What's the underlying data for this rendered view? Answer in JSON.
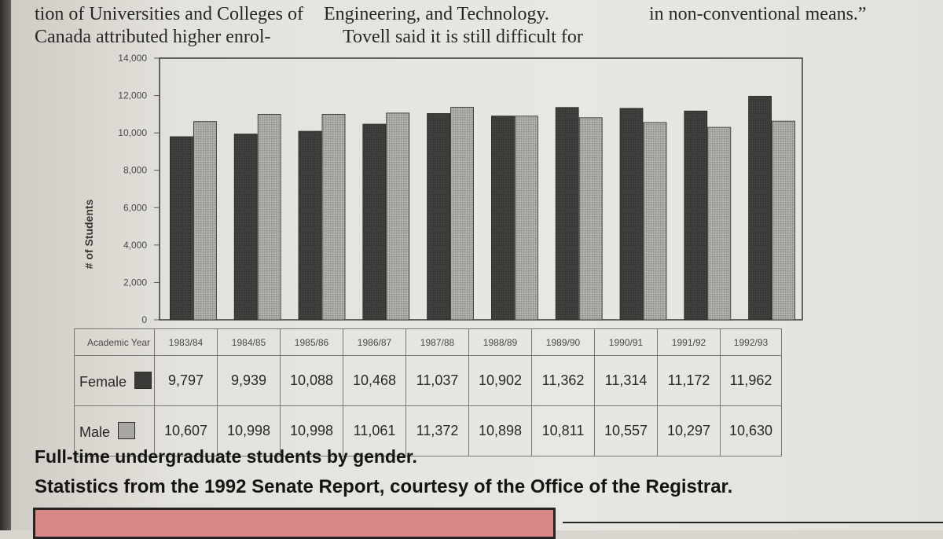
{
  "article": {
    "col1": [
      "tion of Universities and Colleges of",
      "Canada attributed higher enrol-"
    ],
    "col2": [
      "Engineering, and Technology.",
      "Tovell said it is still difficult for"
    ],
    "col3": [
      "in non-conventional means.”"
    ]
  },
  "chart_data": {
    "type": "bar",
    "title": "",
    "xlabel": "Academic Year",
    "ylabel": "# of Students",
    "ylim": [
      0,
      14000
    ],
    "yticks": [
      "0",
      "2,000",
      "4,000",
      "6,000",
      "8,000",
      "10,000",
      "12,000",
      "14,000"
    ],
    "categories": [
      "1983/84",
      "1984/85",
      "1985/86",
      "1986/87",
      "1987/88",
      "1988/89",
      "1989/90",
      "1990/91",
      "1991/92",
      "1992/93"
    ],
    "series": [
      {
        "name": "Female",
        "color": "#3b3a38",
        "values": [
          9797,
          9939,
          10088,
          10468,
          11037,
          10902,
          11362,
          11314,
          11172,
          11962
        ],
        "labels": [
          "9,797",
          "9,939",
          "10,088",
          "10,468",
          "11,037",
          "10,902",
          "11,362",
          "11,314",
          "11,172",
          "11,962"
        ]
      },
      {
        "name": "Male",
        "color": "#a9a7a2",
        "values": [
          10607,
          10998,
          10998,
          11061,
          11372,
          10898,
          10811,
          10557,
          10297,
          10630
        ],
        "labels": [
          "10,607",
          "10,998",
          "10,998",
          "11,061",
          "11,372",
          "10,898",
          "10,811",
          "10,557",
          "10,297",
          "10,630"
        ]
      }
    ],
    "grid": true,
    "legend": "data table below chart"
  },
  "caption": {
    "line1": "Full-time undergraduate students by gender.",
    "line2": "Statistics from the 1992 Senate Report, courtesy of the Office of the Registrar."
  }
}
